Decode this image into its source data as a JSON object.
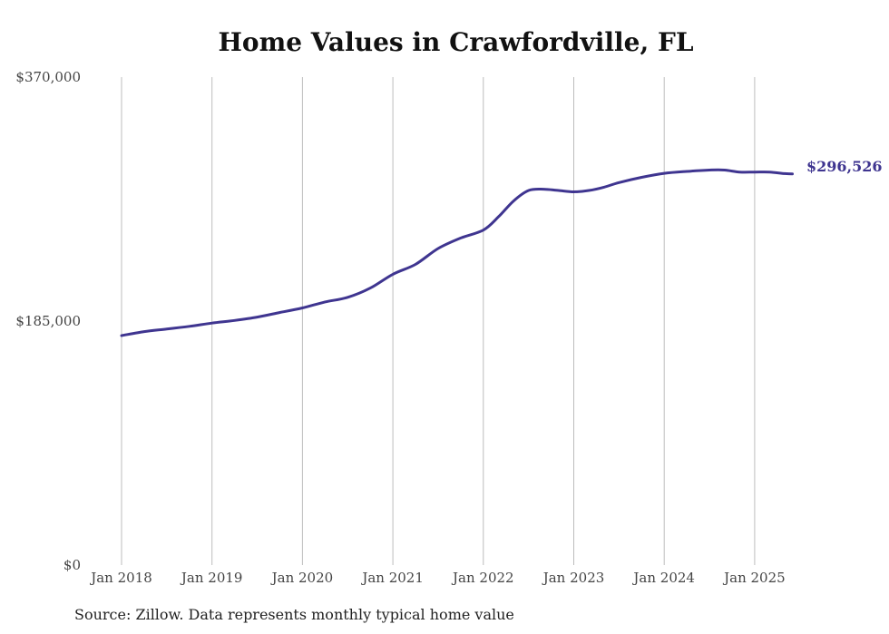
{
  "chart_data": {
    "type": "line",
    "title": "Home Values in Crawfordville, FL",
    "source": "Source: Zillow. Data represents monthly typical home value",
    "ylim": [
      0,
      370000
    ],
    "y_ticks": [
      "$0",
      "$185,000",
      "$370,000"
    ],
    "y_tick_values": [
      0,
      185000,
      370000
    ],
    "x_ticks": [
      "Jan 2018",
      "Jan 2019",
      "Jan 2020",
      "Jan 2021",
      "Jan 2022",
      "Jan 2023",
      "Jan 2024",
      "Jan 2025"
    ],
    "x_tick_values": [
      2018,
      2019,
      2020,
      2021,
      2022,
      2023,
      2024,
      2025
    ],
    "xlim": [
      2018,
      2025.417
    ],
    "grid": "vertical",
    "line_color": "#3f3590",
    "end_label": "$296,526",
    "series": [
      {
        "x": [
          2018,
          2018.25,
          2018.5,
          2018.75,
          2019,
          2019.25,
          2019.5,
          2019.75,
          2020,
          2020.25,
          2020.5,
          2020.75,
          2021,
          2021.25,
          2021.5,
          2021.75,
          2022,
          2022.167,
          2022.333,
          2022.5,
          2022.667,
          2022.833,
          2023,
          2023.167,
          2023.333,
          2023.5,
          2023.75,
          2024,
          2024.25,
          2024.5,
          2024.667,
          2024.833,
          2025,
          2025.167,
          2025.333,
          2025.417
        ],
        "values": [
          174000,
          177000,
          179000,
          181000,
          183500,
          185500,
          188000,
          191500,
          195000,
          199500,
          203000,
          210000,
          220500,
          228000,
          240000,
          248000,
          254000,
          264000,
          276000,
          284000,
          285000,
          284000,
          283000,
          284000,
          286500,
          290000,
          294000,
          297000,
          298500,
          299500,
          299500,
          298000,
          298000,
          298000,
          296800,
          296526
        ]
      }
    ]
  }
}
